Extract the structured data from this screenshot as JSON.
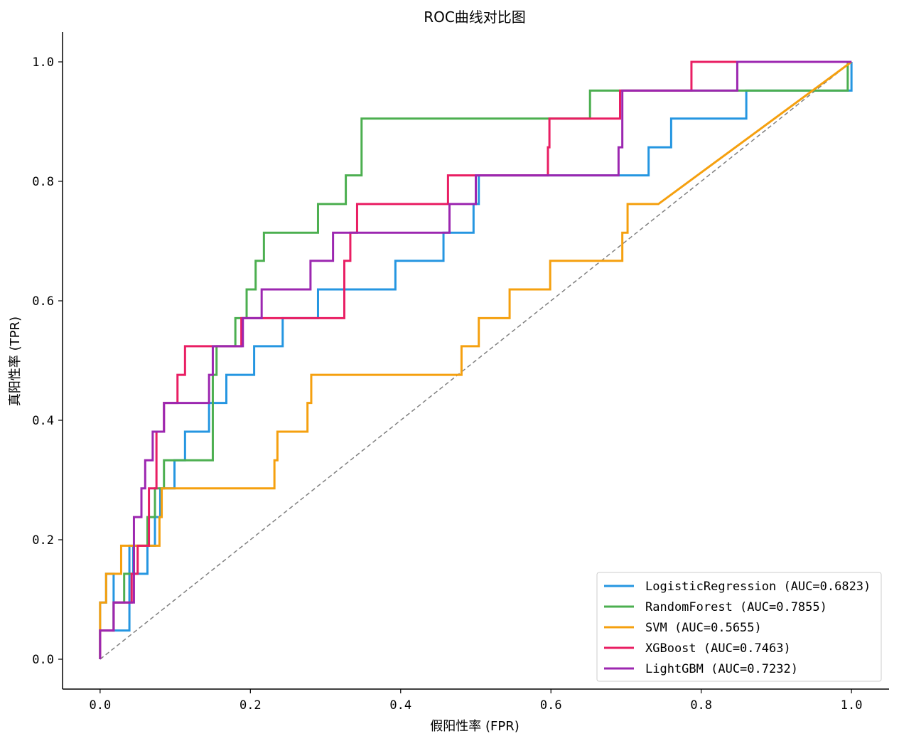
{
  "chart_data": {
    "type": "line",
    "title": "ROC曲线对比图",
    "xlabel": "假阳性率 (FPR)",
    "ylabel": "真阳性率 (TPR)",
    "xlim": [
      -0.05,
      1.05
    ],
    "ylim": [
      -0.05,
      1.05
    ],
    "xticks": [
      0.0,
      0.2,
      0.4,
      0.6,
      0.8,
      1.0
    ],
    "xtick_labels": [
      "0.0",
      "0.2",
      "0.4",
      "0.6",
      "0.8",
      "1.0"
    ],
    "yticks": [
      0.0,
      0.2,
      0.4,
      0.6,
      0.8,
      1.0
    ],
    "ytick_labels": [
      "0.0",
      "0.2",
      "0.4",
      "0.6",
      "0.8",
      "1.0"
    ],
    "grid": false,
    "legend_position": "lower-right",
    "diagonal": {
      "x": [
        0,
        1
      ],
      "y": [
        0,
        1
      ],
      "color": "#808080",
      "style": "dashed"
    },
    "series": [
      {
        "name": "LogisticRegression (AUC=0.6823)",
        "color": "#2596e1",
        "x": [
          0,
          0,
          0.008,
          0.008,
          0.018,
          0.018,
          0.039,
          0.039,
          0.044,
          0.044,
          0.063,
          0.063,
          0.073,
          0.073,
          0.08,
          0.08,
          0.099,
          0.099,
          0.113,
          0.113,
          0.145,
          0.145,
          0.168,
          0.168,
          0.205,
          0.205,
          0.243,
          0.243,
          0.29,
          0.29,
          0.393,
          0.393,
          0.457,
          0.457,
          0.497,
          0.497,
          0.504,
          0.504,
          0.73,
          0.73,
          0.76,
          0.76,
          0.848,
          0.848,
          0.86,
          0.86,
          1.0,
          1.0
        ],
        "y": [
          0,
          0.095,
          0.095,
          0.143,
          0.143,
          0.048,
          0.048,
          0.19,
          0.19,
          0.143,
          0.143,
          0.19,
          0.19,
          0.238,
          0.238,
          0.286,
          0.286,
          0.333,
          0.333,
          0.381,
          0.381,
          0.429,
          0.429,
          0.476,
          0.476,
          0.524,
          0.524,
          0.571,
          0.571,
          0.619,
          0.619,
          0.667,
          0.667,
          0.714,
          0.714,
          0.762,
          0.762,
          0.81,
          0.81,
          0.857,
          0.857,
          0.905,
          0.905,
          0.905,
          0.905,
          0.952,
          0.952,
          1.0
        ]
      },
      {
        "name": "RandomForest (AUC=0.7855)",
        "color": "#4caf50",
        "x": [
          0,
          0,
          0.018,
          0.018,
          0.032,
          0.032,
          0.045,
          0.045,
          0.063,
          0.063,
          0.073,
          0.073,
          0.085,
          0.085,
          0.15,
          0.15,
          0.155,
          0.155,
          0.18,
          0.18,
          0.195,
          0.195,
          0.207,
          0.207,
          0.218,
          0.218,
          0.29,
          0.29,
          0.327,
          0.327,
          0.348,
          0.348,
          0.646,
          0.646,
          0.652,
          0.652,
          0.995,
          0.995,
          1.0
        ],
        "y": [
          0,
          0.048,
          0.048,
          0.095,
          0.095,
          0.143,
          0.143,
          0.19,
          0.19,
          0.238,
          0.238,
          0.286,
          0.286,
          0.333,
          0.333,
          0.476,
          0.476,
          0.524,
          0.524,
          0.571,
          0.571,
          0.619,
          0.619,
          0.667,
          0.667,
          0.714,
          0.714,
          0.762,
          0.762,
          0.81,
          0.81,
          0.905,
          0.905,
          0.905,
          0.905,
          0.952,
          0.952,
          1.0,
          1.0
        ]
      },
      {
        "name": "SVM (AUC=0.5655)",
        "color": "#f5a00f",
        "x": [
          0,
          0,
          0.008,
          0.008,
          0.028,
          0.028,
          0.079,
          0.079,
          0.082,
          0.082,
          0.232,
          0.232,
          0.236,
          0.236,
          0.276,
          0.276,
          0.281,
          0.281,
          0.481,
          0.481,
          0.504,
          0.504,
          0.545,
          0.545,
          0.599,
          0.599,
          0.695,
          0.695,
          0.702,
          0.702,
          0.743,
          1.0
        ],
        "y": [
          0,
          0.095,
          0.095,
          0.143,
          0.143,
          0.19,
          0.19,
          0.238,
          0.238,
          0.286,
          0.286,
          0.333,
          0.333,
          0.381,
          0.381,
          0.429,
          0.429,
          0.476,
          0.476,
          0.524,
          0.524,
          0.571,
          0.571,
          0.619,
          0.619,
          0.667,
          0.667,
          0.714,
          0.714,
          0.762,
          0.762,
          1.0
        ]
      },
      {
        "name": "XGBoost (AUC=0.7463)",
        "color": "#e91e63",
        "x": [
          0,
          0,
          0.018,
          0.018,
          0.042,
          0.042,
          0.05,
          0.05,
          0.065,
          0.065,
          0.075,
          0.075,
          0.085,
          0.085,
          0.103,
          0.103,
          0.113,
          0.113,
          0.188,
          0.188,
          0.325,
          0.325,
          0.333,
          0.333,
          0.342,
          0.342,
          0.463,
          0.463,
          0.596,
          0.596,
          0.598,
          0.598,
          0.692,
          0.692,
          0.787,
          0.787,
          1.0
        ],
        "y": [
          0,
          0.048,
          0.048,
          0.095,
          0.095,
          0.143,
          0.143,
          0.19,
          0.19,
          0.286,
          0.286,
          0.381,
          0.381,
          0.429,
          0.429,
          0.476,
          0.476,
          0.524,
          0.524,
          0.571,
          0.571,
          0.667,
          0.667,
          0.714,
          0.714,
          0.762,
          0.762,
          0.81,
          0.81,
          0.857,
          0.857,
          0.905,
          0.905,
          0.952,
          0.952,
          1.0,
          1.0
        ]
      },
      {
        "name": "LightGBM (AUC=0.7232)",
        "color": "#9c27b0",
        "x": [
          0,
          0,
          0.018,
          0.018,
          0.045,
          0.045,
          0.055,
          0.055,
          0.06,
          0.06,
          0.07,
          0.07,
          0.085,
          0.085,
          0.1,
          0.1,
          0.145,
          0.145,
          0.15,
          0.15,
          0.19,
          0.19,
          0.215,
          0.215,
          0.28,
          0.28,
          0.31,
          0.31,
          0.465,
          0.465,
          0.5,
          0.5,
          0.69,
          0.69,
          0.695,
          0.695,
          0.848,
          0.848,
          0.883,
          0.883,
          1.0
        ],
        "y": [
          0,
          0.048,
          0.048,
          0.095,
          0.095,
          0.238,
          0.238,
          0.286,
          0.286,
          0.333,
          0.333,
          0.381,
          0.381,
          0.429,
          0.429,
          0.429,
          0.429,
          0.476,
          0.476,
          0.524,
          0.524,
          0.571,
          0.571,
          0.619,
          0.619,
          0.667,
          0.667,
          0.714,
          0.714,
          0.762,
          0.762,
          0.81,
          0.81,
          0.857,
          0.857,
          0.952,
          0.952,
          1.0,
          1.0,
          1.0,
          1.0
        ]
      }
    ]
  }
}
